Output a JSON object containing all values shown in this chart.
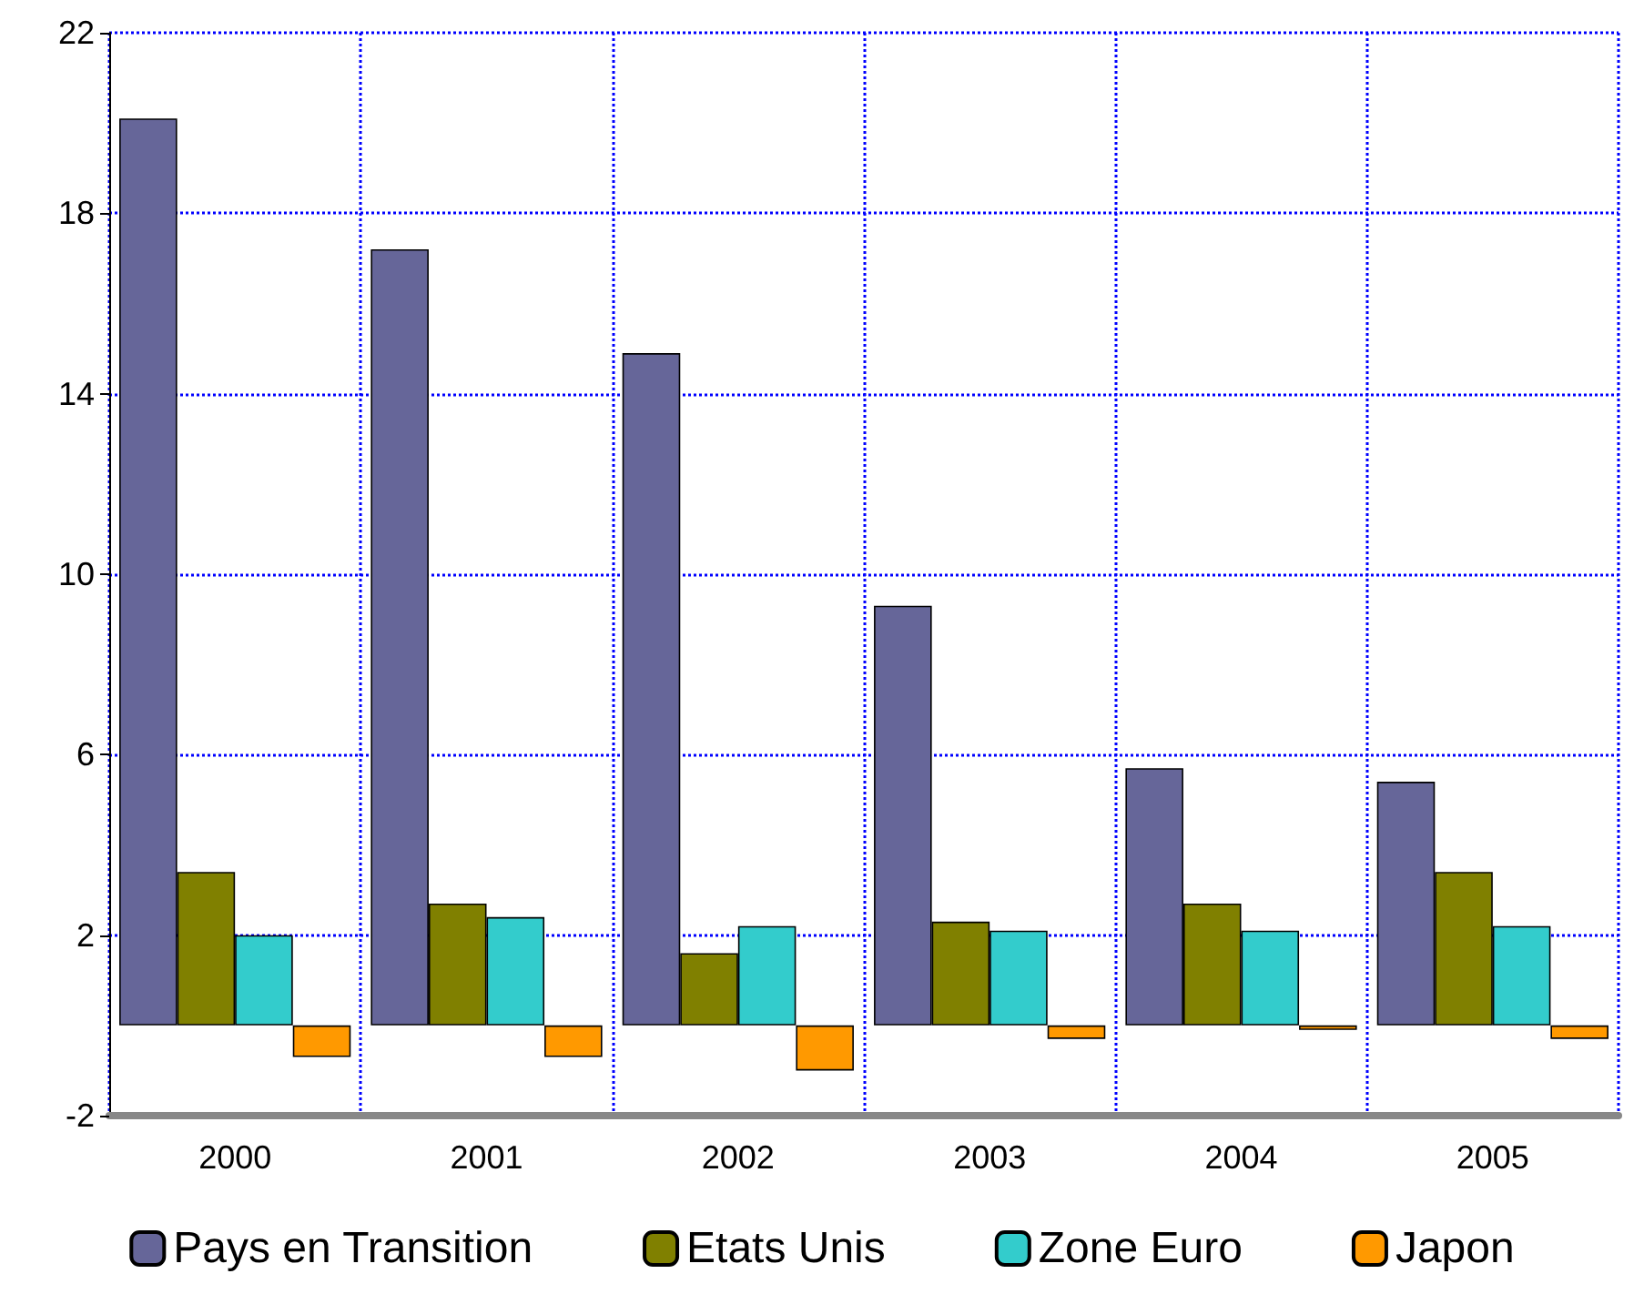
{
  "chart_data": {
    "type": "bar",
    "categories": [
      "2000",
      "2001",
      "2002",
      "2003",
      "2004",
      "2005"
    ],
    "series": [
      {
        "name": "Pays en Transition",
        "color": "#666699",
        "values": [
          20.1,
          17.2,
          14.9,
          9.3,
          5.7,
          5.4
        ]
      },
      {
        "name": "Etats Unis",
        "color": "#808000",
        "values": [
          3.4,
          2.7,
          1.6,
          2.3,
          2.7,
          3.4
        ]
      },
      {
        "name": "Zone Euro",
        "color": "#33cccc",
        "values": [
          2.0,
          2.4,
          2.2,
          2.1,
          2.1,
          2.2
        ]
      },
      {
        "name": "Japon",
        "color": "#ff9900",
        "values": [
          -0.7,
          -0.7,
          -1.0,
          -0.3,
          -0.1,
          -0.3
        ]
      }
    ],
    "ylim": [
      -2,
      22
    ],
    "yticks": [
      -2,
      2,
      6,
      10,
      14,
      18,
      22
    ],
    "grid": true,
    "legend": "bottom"
  }
}
